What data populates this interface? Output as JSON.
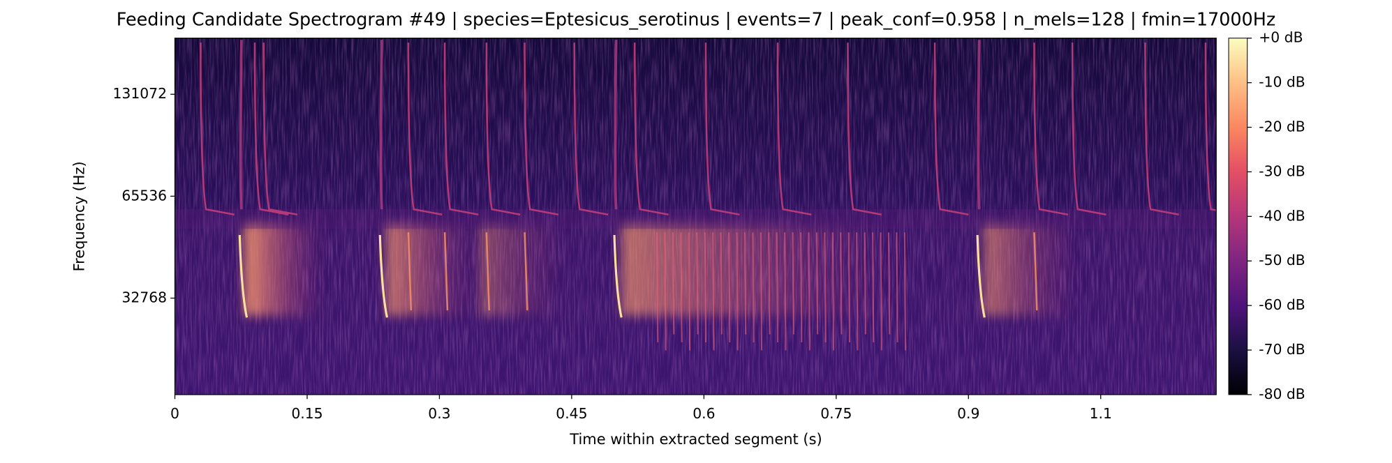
{
  "chart_data": {
    "type": "spectrogram",
    "title": "Feeding Candidate Spectrogram #49 | species=Eptesicus_serotinus | events=7 | peak_conf=0.958 | n_mels=128 | fmin=17000Hz",
    "xlabel": "Time within extracted segment (s)",
    "ylabel": "Frequency (Hz)",
    "xlim": [
      0,
      1.181
    ],
    "xticks": [
      0,
      0.15,
      0.3,
      0.45,
      0.6,
      0.75,
      0.9,
      {
        "value": 1.05,
        "label": "1.1"
      }
    ],
    "ylim": [
      17000,
      192000
    ],
    "yscale": "log",
    "yticks": [
      32768,
      65536,
      131072
    ],
    "colorbar": {
      "cmap": "magma",
      "lim": [
        -80,
        0
      ],
      "ticks": [
        {
          "value": 0,
          "label": "+0 dB"
        },
        {
          "value": -10,
          "label": "-10 dB"
        },
        {
          "value": -20,
          "label": "-20 dB"
        },
        {
          "value": -30,
          "label": "-30 dB"
        },
        {
          "value": -40,
          "label": "-40 dB"
        },
        {
          "value": -50,
          "label": "-50 dB"
        },
        {
          "value": -60,
          "label": "-60 dB"
        },
        {
          "value": -70,
          "label": "-70 dB"
        },
        {
          "value": -80,
          "label": "-80 dB"
        }
      ]
    }
  }
}
